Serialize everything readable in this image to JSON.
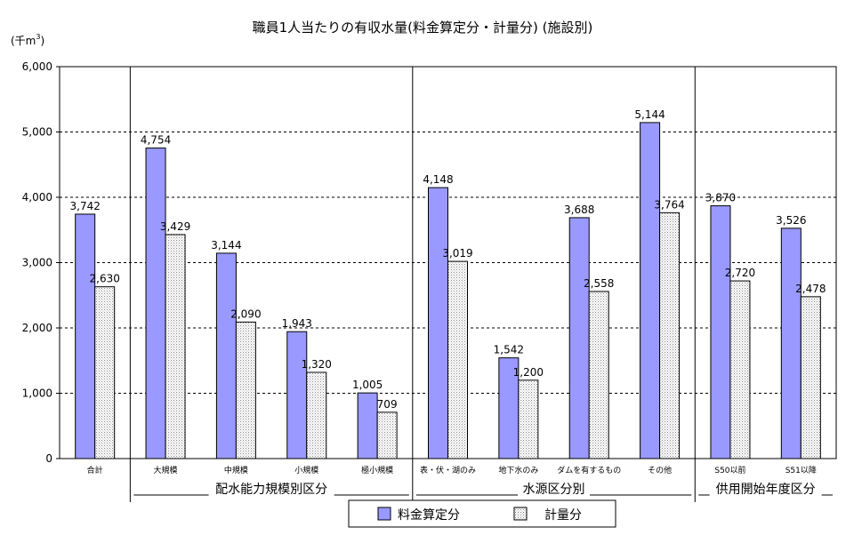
{
  "chart_data": {
    "type": "bar",
    "title": "職員1人当たりの有収水量(料金算定分・計量分) (施設別)",
    "ylabel_prefix": "(千m",
    "ylabel_sup": "3",
    "ylabel_suffix": ")",
    "ylim": [
      0,
      6000
    ],
    "yticks": [
      "0",
      "1,000",
      "2,000",
      "3,000",
      "4,000",
      "5,000",
      "6,000"
    ],
    "ytick_values": [
      0,
      1000,
      2000,
      3000,
      4000,
      5000,
      6000
    ],
    "grid": true,
    "categories": [
      "合計",
      "大規模",
      "中規模",
      "小規模",
      "極小規模",
      "表・伏・湖のみ",
      "地下水のみ",
      "ダムを有するもの",
      "その他",
      "S50以前",
      "S51以降"
    ],
    "series": [
      {
        "name": "料金算定分",
        "color": "#9999ff",
        "pattern": "solid",
        "values": [
          3742,
          4754,
          3144,
          1943,
          1005,
          4148,
          1542,
          3688,
          5144,
          3870,
          3526
        ],
        "labels": [
          "3,742",
          "4,754",
          "3,144",
          "1,943",
          "1,005",
          "4,148",
          "1,542",
          "3,688",
          "5,144",
          "3,870",
          "3,526"
        ]
      },
      {
        "name": "計量分",
        "color": "#ffffff",
        "pattern": "dotted",
        "values": [
          2630,
          3429,
          2090,
          1320,
          709,
          3019,
          1200,
          2558,
          3764,
          2720,
          2478
        ],
        "labels": [
          "2,630",
          "3,429",
          "2,090",
          "1,320",
          "709",
          "3,019",
          "1,200",
          "2,558",
          "3,764",
          "2,720",
          "2,478"
        ]
      }
    ],
    "groups": [
      {
        "label": "配水能力規模別区分",
        "from": 1,
        "to": 4
      },
      {
        "label": "水源区分別",
        "from": 5,
        "to": 8
      },
      {
        "label": "供用開始年度区分",
        "from": 9,
        "to": 10
      }
    ],
    "legend_position": "bottom"
  }
}
